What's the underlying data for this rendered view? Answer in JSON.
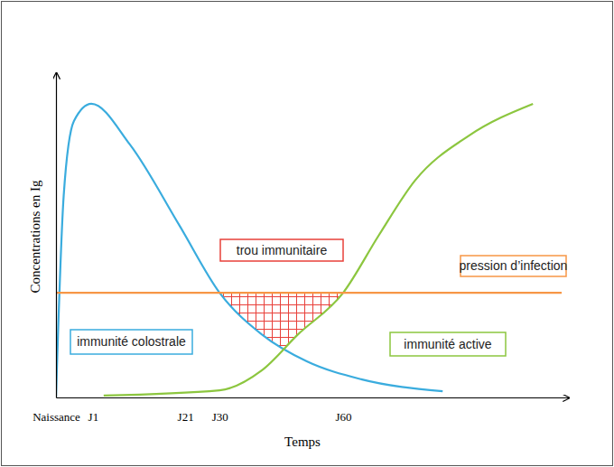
{
  "chart_data": {
    "type": "line",
    "x_label": "Temps",
    "y_label": "Concentrations en Ig",
    "xlim": [
      0,
      100
    ],
    "ylim": [
      0,
      100
    ],
    "xticks": [
      {
        "value": 0,
        "label": "Naissance"
      },
      {
        "value": 7.2,
        "label": "J1"
      },
      {
        "value": 25.2,
        "label": "J21"
      },
      {
        "value": 31.9,
        "label": "J30"
      },
      {
        "value": 56,
        "label": "J60"
      }
    ],
    "tick_labels": "x",
    "grid": false,
    "series": [
      {
        "name": "immunité colostrale",
        "color": "#3aacde",
        "x": [
          0,
          1.5,
          3.5,
          6.9,
          14.4,
          24.1,
          31.9,
          40.1,
          48.9,
          59.5,
          75.4
        ],
        "values": [
          0,
          62,
          85,
          90.3,
          77.8,
          52.8,
          32.2,
          19.4,
          11.1,
          5.6,
          1.9
        ]
      },
      {
        "name": "immunité active",
        "color": "#8cc63f",
        "x": [
          9.3,
          31.9,
          40.1,
          47.2,
          56,
          63,
          70,
          80.6,
          93
        ],
        "values": [
          0.6,
          2.2,
          8.3,
          19.4,
          32.2,
          50,
          66.7,
          80.6,
          90.3
        ]
      },
      {
        "name": "pression d’infection",
        "color": "#f79646",
        "x": [
          0,
          98.6
        ],
        "values": [
          32.2,
          32.2
        ]
      }
    ],
    "annotations": [
      {
        "text": "trou immunitaire",
        "color": "#e8403a"
      }
    ]
  }
}
